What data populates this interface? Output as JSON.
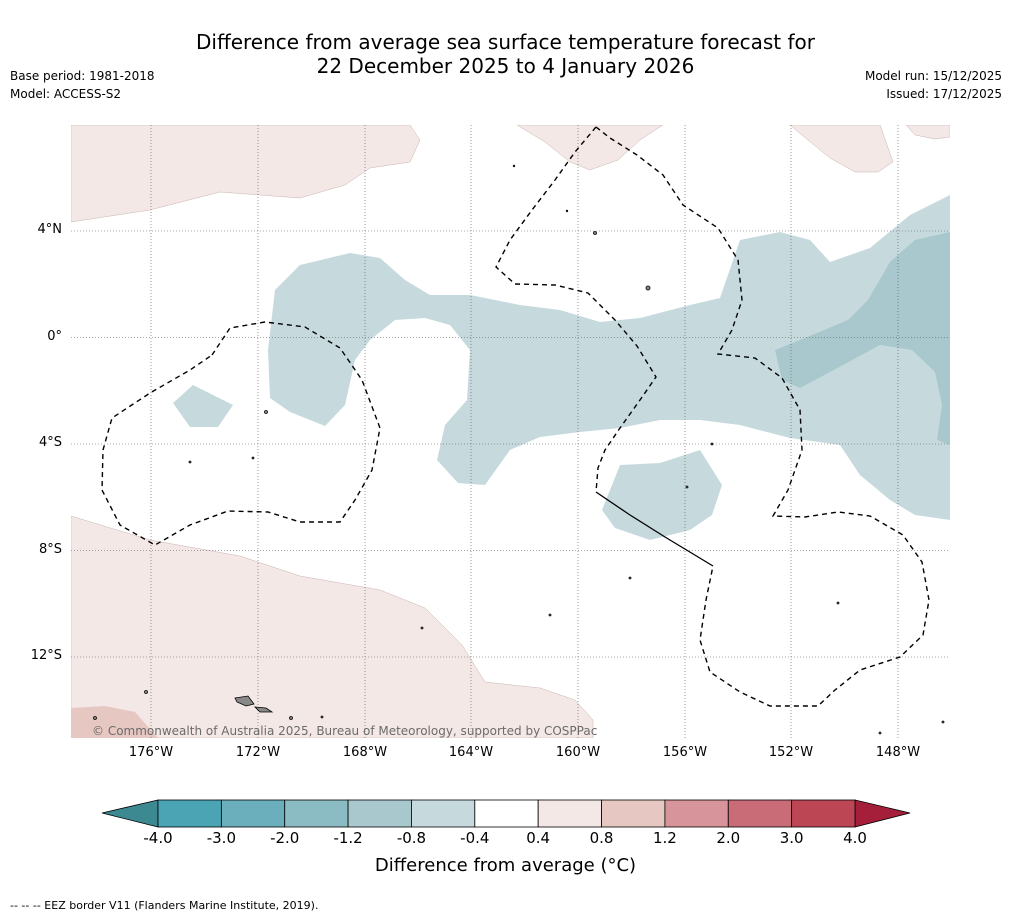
{
  "header": {
    "title_line1": "Difference from average sea surface temperature forecast for",
    "title_line2": "22 December 2025 to 4 January 2026",
    "base_period": "Base period: 1981-2018",
    "model": "Model: ACCESS-S2",
    "model_run": "Model run: 15/12/2025",
    "issued": "Issued: 17/12/2025"
  },
  "map": {
    "lat_labels": [
      "4°N",
      "0°",
      "4°S",
      "8°S",
      "12°S"
    ],
    "lon_labels": [
      "176°W",
      "172°W",
      "168°W",
      "164°W",
      "160°W",
      "156°W",
      "152°W",
      "148°W"
    ],
    "copyright": "© Commonwealth of Australia 2025, Bureau of Meteorology, supported by COSPPac"
  },
  "legend": {
    "ticks": [
      "-4.0",
      "-3.0",
      "-2.0",
      "-1.2",
      "-0.8",
      "-0.4",
      "0.4",
      "0.8",
      "1.2",
      "2.0",
      "3.0",
      "4.0"
    ],
    "colors": [
      "#4aa4b3",
      "#6cafbc",
      "#8bbcc3",
      "#a8c8cd",
      "#c6dade",
      "#ffffff",
      "#f4e8e6",
      "#e6c7c2",
      "#d7949a",
      "#c96c78",
      "#bd4655"
    ],
    "under_color": "#3d8992",
    "over_color": "#a51f3a",
    "title": "Difference from average (°C)"
  },
  "footnote": "--  --  -- EEZ border V11 (Flanders Marine Institute, 2019)."
}
